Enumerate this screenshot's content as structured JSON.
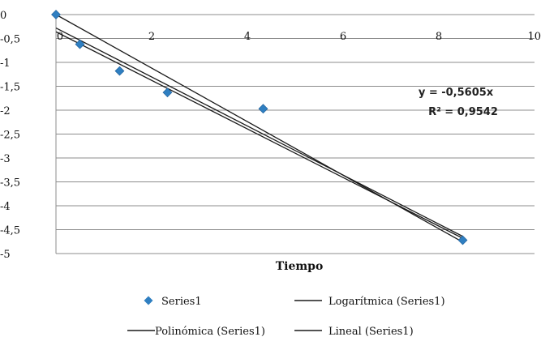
{
  "chart_data": {
    "type": "scatter",
    "xlabel": "Tiempo",
    "ylabel": "",
    "xlim": [
      0,
      10
    ],
    "ylim": [
      -5,
      0
    ],
    "x_ticks": [
      0,
      2,
      4,
      6,
      8,
      10
    ],
    "x_tick_labels": [
      "0",
      "2",
      "4",
      "6",
      "8",
      "10"
    ],
    "y_ticks": [
      0,
      -0.5,
      -1,
      -1.5,
      -2,
      -2.5,
      -3,
      -3.5,
      -4,
      -4.5,
      -5
    ],
    "y_tick_labels": [
      "0",
      "-0,5",
      "-1",
      "-1,5",
      "-2",
      "-2,5",
      "-3",
      "-3,5",
      "-4",
      "-4,5",
      "-5"
    ],
    "grid": "horizontal",
    "series": [
      {
        "name": "Series1",
        "marker": "diamond",
        "color": "#2f7fc1",
        "points": [
          [
            0,
            0
          ],
          [
            0.5,
            -0.62
          ],
          [
            1.33,
            -1.18
          ],
          [
            2.33,
            -1.63
          ],
          [
            4.33,
            -1.97
          ],
          [
            8.5,
            -4.72
          ]
        ]
      }
    ],
    "trendlines": [
      {
        "name": "Logarítmica (Series1)",
        "color": "#1a1a1a",
        "from": [
          0,
          -0.28
        ],
        "to": [
          8.5,
          -4.64
        ]
      },
      {
        "name": "Polinómica (Series1)",
        "color": "#1a1a1a",
        "from": [
          0,
          -0.36
        ],
        "to": [
          8.5,
          -4.68
        ]
      },
      {
        "name": "Lineal (Series1)",
        "color": "#1a1a1a",
        "from": [
          0,
          0
        ],
        "to": [
          8.5,
          -4.76
        ]
      }
    ],
    "equation": "y = -0,5605x",
    "r_squared": "R² = 0,9542",
    "legend": {
      "position": "bottom",
      "entries": [
        {
          "label": "Series1",
          "kind": "diamond"
        },
        {
          "label": "Logarítmica (Series1)",
          "kind": "line"
        },
        {
          "label": "Polinómica (Series1)",
          "kind": "line"
        },
        {
          "label": "Lineal (Series1)",
          "kind": "line"
        }
      ]
    }
  }
}
